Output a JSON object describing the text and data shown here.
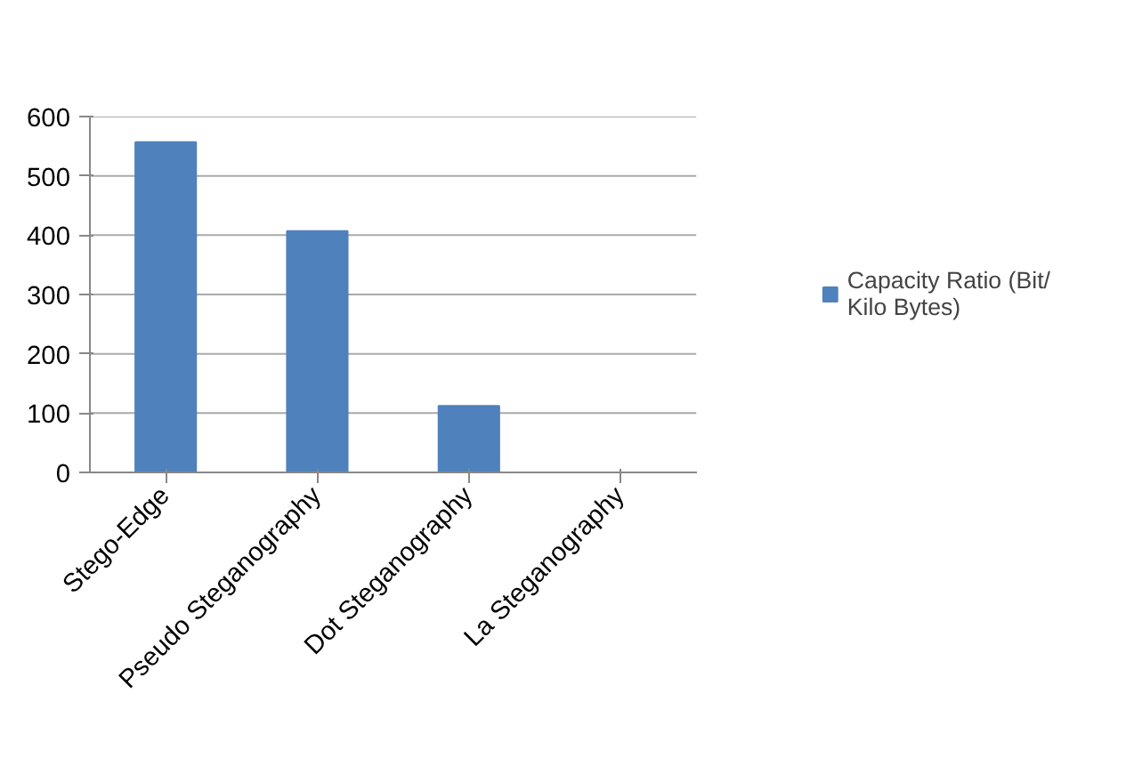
{
  "chart_data": {
    "type": "bar",
    "categories": [
      "Stego-Edge",
      "Pseudo Steganography",
      "Dot Steganography",
      "La Steganography"
    ],
    "series": [
      {
        "name": "Capacity Ratio (Bit/ Kilo Bytes)",
        "color": "#4f81bd",
        "values": [
          557,
          407,
          112,
          0
        ]
      }
    ],
    "ylim": [
      0,
      600
    ],
    "yticks": [
      0,
      100,
      200,
      300,
      400,
      500,
      600
    ],
    "grid": "y",
    "legend": "right"
  }
}
